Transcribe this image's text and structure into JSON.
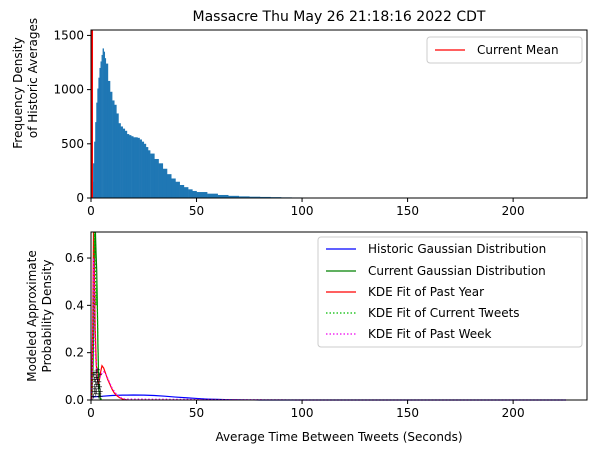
{
  "title": "Massacre Thu May 26 21:18:16 2022 CDT",
  "colors": {
    "hist": "#1f77b4",
    "current_mean": "#ff0000",
    "historic_gauss": "#0000ff",
    "current_gauss": "#008000",
    "kde_year": "#ff0000",
    "kde_current": "#00bb00",
    "kde_week": "#ee00ee",
    "scatter": "#000000"
  },
  "chart_data": [
    {
      "type": "bar",
      "title": "Massacre Thu May 26 21:18:16 2022 CDT",
      "ylabel_lines": [
        "Frequency Density",
        "of Historic Averages"
      ],
      "xlabel": "",
      "xlim": [
        0,
        235
      ],
      "ylim": [
        0,
        1550
      ],
      "xticks": [
        0,
        50,
        100,
        150,
        200
      ],
      "yticks": [
        0,
        500,
        1000,
        1500
      ],
      "legend": {
        "position": "top-right",
        "entries": [
          "Current Mean"
        ]
      },
      "current_mean_x": 0.6,
      "histogram": {
        "x": [
          0.5,
          1,
          1.5,
          2,
          2.5,
          3,
          3.5,
          4,
          4.5,
          5,
          5.5,
          6,
          6.5,
          7,
          8,
          9,
          10,
          11,
          12,
          13,
          14,
          15,
          16,
          17,
          18,
          19,
          20,
          21,
          22,
          23,
          24,
          25,
          26,
          27,
          28,
          30,
          32,
          34,
          36,
          38,
          40,
          42,
          44,
          46,
          48,
          50,
          55,
          60,
          65,
          70,
          75,
          80,
          85,
          90,
          95,
          100,
          105,
          110
        ],
        "values": [
          150,
          320,
          520,
          700,
          880,
          1010,
          1110,
          1200,
          1260,
          1320,
          1380,
          1350,
          1290,
          1240,
          1080,
          980,
          900,
          860,
          780,
          690,
          660,
          640,
          620,
          590,
          580,
          570,
          560,
          560,
          555,
          540,
          520,
          500,
          470,
          440,
          410,
          360,
          320,
          270,
          220,
          180,
          150,
          120,
          100,
          80,
          65,
          55,
          40,
          28,
          20,
          15,
          12,
          10,
          8,
          6,
          5,
          4,
          3,
          0
        ]
      }
    },
    {
      "type": "line",
      "title": "",
      "ylabel_lines": [
        "Modeled Approximate",
        "Probability Density"
      ],
      "xlabel": "Average Time Between Tweets (Seconds)",
      "xlim": [
        0,
        235
      ],
      "ylim": [
        0,
        0.71
      ],
      "xticks": [
        0,
        50,
        100,
        150,
        200
      ],
      "yticks": [
        0.0,
        0.2,
        0.4,
        0.6
      ],
      "ytick_labels": [
        "0.0",
        "0.2",
        "0.4",
        "0.6"
      ],
      "legend": {
        "position": "top-right",
        "entries": [
          "Historic Gaussian Distribution",
          "Current Gaussian Distribution",
          "KDE Fit of Past Year",
          "KDE Fit of Current Tweets",
          "KDE Fit of Past Week"
        ]
      },
      "series": [
        {
          "name": "Historic Gaussian Distribution",
          "x": [
            0,
            5,
            10,
            15,
            20,
            25,
            30,
            35,
            40,
            45,
            50,
            55,
            60,
            65,
            70,
            75,
            80,
            90,
            100,
            225
          ],
          "y": [
            0.0125,
            0.0155,
            0.019,
            0.0205,
            0.021,
            0.0205,
            0.019,
            0.016,
            0.0125,
            0.0095,
            0.0065,
            0.004,
            0.0025,
            0.0013,
            0.0006,
            0.0003,
            0.0001,
            0,
            0,
            0
          ]
        },
        {
          "name": "Current Gaussian Distribution",
          "x": [
            0.2,
            0.5,
            0.9,
            1.3,
            1.6,
            1.9,
            2.1,
            2.4,
            2.7,
            3.0,
            3.3,
            3.6,
            3.9,
            4.3,
            5.0
          ],
          "y": [
            0.0,
            0.02,
            0.12,
            0.3,
            0.5,
            0.66,
            0.71,
            0.62,
            0.55,
            0.4,
            0.22,
            0.1,
            0.03,
            0.005,
            0.0
          ]
        },
        {
          "name": "KDE Fit of Past Year",
          "x": [
            0.3,
            0.8,
            1.2,
            1.6,
            2.0,
            2.5,
            3.0,
            3.5,
            4.0,
            4.6,
            5.2,
            6.0,
            7.0,
            8.0,
            9.0,
            10.0,
            11.0,
            12.0,
            13.5,
            15.0,
            17.0
          ],
          "y": [
            0.0,
            0.3,
            0.71,
            0.55,
            0.3,
            0.15,
            0.09,
            0.07,
            0.085,
            0.12,
            0.145,
            0.135,
            0.11,
            0.085,
            0.065,
            0.045,
            0.03,
            0.02,
            0.01,
            0.004,
            0.0
          ]
        },
        {
          "name": "KDE Fit of Current Tweets",
          "x": [
            0.5,
            1.0,
            1.3,
            1.6,
            2.0,
            2.4,
            2.8,
            3.2,
            3.6,
            4.0,
            4.5,
            5.0
          ],
          "y": [
            0.0,
            0.15,
            0.5,
            0.71,
            0.6,
            0.4,
            0.5,
            0.28,
            0.1,
            0.04,
            0.01,
            0.0
          ]
        },
        {
          "name": "KDE Fit of Past Week",
          "x": [
            0.3,
            0.8,
            1.2,
            1.6,
            2.0,
            3.0,
            4.0,
            5.0,
            6.0,
            7.0,
            8.0,
            9.0,
            10.0,
            12.0,
            14.0,
            16.0,
            100,
            225
          ],
          "y": [
            0.0,
            0.2,
            0.6,
            0.45,
            0.2,
            0.08,
            0.09,
            0.11,
            0.12,
            0.11,
            0.09,
            0.07,
            0.05,
            0.025,
            0.01,
            0.004,
            0.0,
            0.0
          ]
        }
      ],
      "scatter": {
        "x": [
          1.2,
          1.5,
          1.8,
          2.1,
          2.4,
          2.7,
          3.0,
          3.3,
          3.6,
          3.9,
          4.2,
          4.5,
          1.4,
          2.0,
          2.6,
          3.2,
          3.8,
          4.4,
          1.7,
          2.3,
          2.9,
          3.5,
          4.1,
          1.9,
          2.5,
          3.1,
          3.7
        ],
        "y": [
          0.02,
          0.04,
          0.06,
          0.08,
          0.1,
          0.12,
          0.09,
          0.07,
          0.05,
          0.03,
          0.06,
          0.04,
          0.11,
          0.05,
          0.07,
          0.13,
          0.08,
          0.02,
          0.09,
          0.03,
          0.1,
          0.06,
          0.11,
          0.12,
          0.04,
          0.08,
          0.02
        ]
      }
    }
  ]
}
